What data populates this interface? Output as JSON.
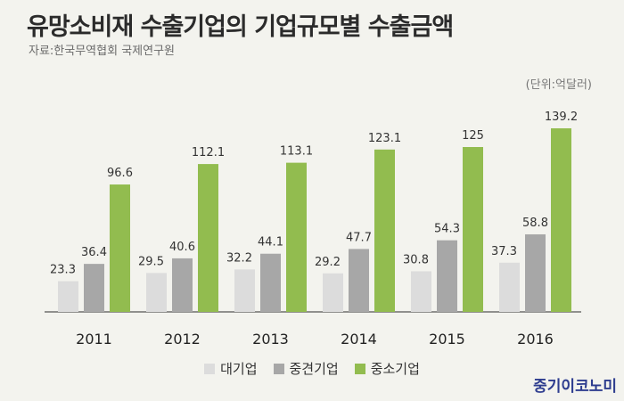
{
  "title": "유망소비재 수출기업의 기업규모별 수출금액",
  "source": "자료:한국무역협회 국제연구원",
  "unit": "(단위:억달러)",
  "brand": "중기이코노미",
  "colors": {
    "large": "#dcdcdc",
    "mid": "#a7a7a7",
    "sme": "#92bc4f",
    "background": "#f3f3ee"
  },
  "chart_data": {
    "type": "bar",
    "categories": [
      "2011",
      "2012",
      "2013",
      "2014",
      "2015",
      "2016"
    ],
    "series": [
      {
        "name": "대기업",
        "values": [
          23.3,
          29.5,
          32.2,
          29.2,
          30.8,
          37.3
        ]
      },
      {
        "name": "중견기업",
        "values": [
          36.4,
          40.6,
          44.1,
          47.7,
          54.3,
          58.8
        ]
      },
      {
        "name": "중소기업",
        "values": [
          96.6,
          112.1,
          113.1,
          123.1,
          125,
          139.2
        ]
      }
    ],
    "ylim": [
      0,
      150
    ],
    "grid": false,
    "legend_position": "bottom"
  }
}
